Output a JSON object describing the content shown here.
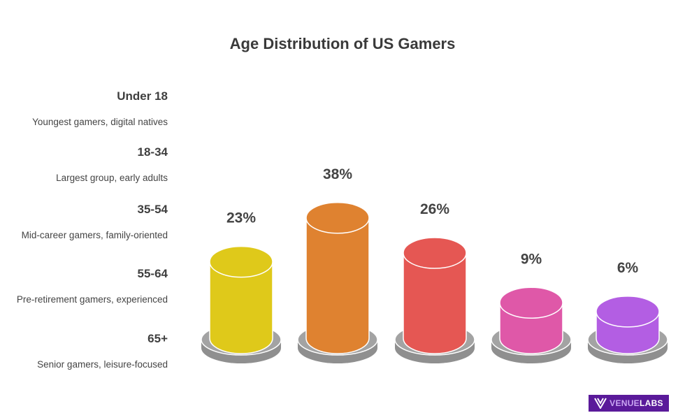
{
  "chart_data": {
    "type": "bar",
    "title": "Age Distribution of US Gamers",
    "categories": [
      "Under 18",
      "18-34",
      "35-54",
      "55-64",
      "65+"
    ],
    "descriptions": [
      "Youngest gamers, digital natives",
      "Largest group, early adults",
      "Mid-career gamers, family-oriented",
      "Pre-retirement gamers, experienced",
      "Senior gamers, leisure-focused"
    ],
    "values": [
      23,
      38,
      26,
      9,
      6
    ],
    "labels": [
      "23%",
      "38%",
      "26%",
      "9%",
      "6%"
    ],
    "colors": [
      "#dfc91a",
      "#df8230",
      "#e55753",
      "#df58a8",
      "#b35ee3"
    ],
    "style": "3D cylinders on gray bases",
    "grid": false
  },
  "logo": {
    "text_a": "VENUE",
    "text_b": "LABS",
    "bg": "#5a1a9a"
  }
}
